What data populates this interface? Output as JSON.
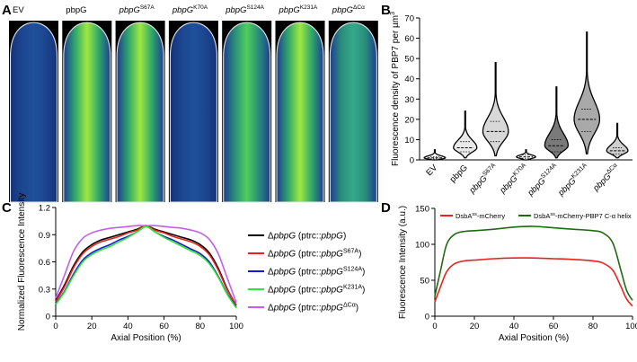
{
  "panel_letters": [
    "A",
    "B",
    "C",
    "D"
  ],
  "panel_a": {
    "strips": [
      {
        "label": "EV",
        "intensity": 0.12
      },
      {
        "label": "pbpG",
        "intensity": 0.9
      },
      {
        "label": "pbpG",
        "sup": "S67A",
        "intensity": 0.8
      },
      {
        "label": "pbpG",
        "sup": "K70A",
        "intensity": 0.18
      },
      {
        "label": "pbpG",
        "sup": "S124A",
        "intensity": 0.6
      },
      {
        "label": "pbpG",
        "sup": "K231A",
        "intensity": 0.95
      },
      {
        "label": "pbpG",
        "sup": "ΔCα",
        "intensity": 0.45
      }
    ]
  },
  "chart_data": [
    {
      "panel": "B",
      "type": "violin",
      "ylabel": "Fluorescence density of PBP7 per µm",
      "ylabel_sup": "3",
      "ylim": [
        0,
        70
      ],
      "yticks": [
        0,
        10,
        20,
        30,
        40,
        50,
        60,
        70
      ],
      "categories": [
        {
          "label": "EV",
          "median": 1,
          "q1": 0.5,
          "q3": 1.5,
          "min": 0,
          "max": 5,
          "max_half_width": 0.5,
          "color": "#ffffff"
        },
        {
          "label": "pbpG",
          "median": 6,
          "q1": 4,
          "q3": 9,
          "min": 1,
          "max": 24,
          "max_half_width": 0.55,
          "color": "#e9e9e9"
        },
        {
          "label": "pbpG",
          "sup": "S67A",
          "median": 14,
          "q1": 9,
          "q3": 19,
          "min": 2,
          "max": 48,
          "max_half_width": 0.6,
          "color": "#d8d8d8"
        },
        {
          "label": "pbpG",
          "sup": "K70A",
          "median": 1.5,
          "q1": 0.8,
          "q3": 2.5,
          "min": 0,
          "max": 5,
          "max_half_width": 0.45,
          "color": "#ffffff"
        },
        {
          "label": "pbpG",
          "sup": "S124A",
          "median": 7,
          "q1": 4,
          "q3": 10,
          "min": 1,
          "max": 36,
          "max_half_width": 0.55,
          "color": "#7a7a7a"
        },
        {
          "label": "pbpG",
          "sup": "K231A",
          "median": 20,
          "q1": 14,
          "q3": 25,
          "min": 3,
          "max": 63,
          "max_half_width": 0.6,
          "color": "#a9a9a9"
        },
        {
          "label": "pbpG",
          "sup": "ΔCα",
          "median": 4.5,
          "q1": 3,
          "q3": 6,
          "min": 1,
          "max": 18,
          "max_half_width": 0.5,
          "color": "#d0d0d0"
        }
      ]
    },
    {
      "panel": "C",
      "type": "line",
      "xlabel": "Axial Position (%)",
      "ylabel": "Normalized Fluorescence Intensity",
      "xlim": [
        0,
        100
      ],
      "ylim": [
        0,
        1.2
      ],
      "xticks": [
        0,
        20,
        40,
        60,
        80,
        100
      ],
      "yticks": [
        0,
        0.3,
        0.6,
        0.9,
        1.2
      ],
      "ytick_labels": [
        "0",
        "0.3",
        "0.6",
        "0.9",
        "1.2"
      ],
      "x": [
        0,
        5,
        10,
        15,
        20,
        25,
        30,
        35,
        40,
        45,
        50,
        55,
        60,
        65,
        70,
        75,
        80,
        85,
        90,
        95,
        100
      ],
      "series": [
        {
          "prefix": "Δ",
          "gene": "pbpG",
          "mid": " (ptrc::",
          "gene2": "pbpG",
          "sup": "",
          "close": ")",
          "color": "#000000",
          "values": [
            0.17,
            0.35,
            0.56,
            0.71,
            0.79,
            0.84,
            0.87,
            0.9,
            0.93,
            0.96,
            1.0,
            0.96,
            0.93,
            0.9,
            0.87,
            0.84,
            0.79,
            0.7,
            0.53,
            0.3,
            0.12
          ]
        },
        {
          "prefix": "Δ",
          "gene": "pbpG",
          "mid": " (ptrc::",
          "gene2": "pbpG",
          "sup": "S67A",
          "close": ")",
          "color": "#e8231f",
          "values": [
            0.16,
            0.33,
            0.54,
            0.69,
            0.77,
            0.82,
            0.85,
            0.88,
            0.92,
            0.95,
            1.0,
            0.95,
            0.92,
            0.88,
            0.85,
            0.82,
            0.77,
            0.68,
            0.51,
            0.29,
            0.12
          ]
        },
        {
          "prefix": "Δ",
          "gene": "pbpG",
          "mid": " (ptrc::",
          "gene2": "pbpG",
          "sup": "S124A",
          "close": ")",
          "color": "#1a1ad6",
          "values": [
            0.14,
            0.28,
            0.47,
            0.62,
            0.7,
            0.75,
            0.79,
            0.84,
            0.88,
            0.93,
            0.99,
            0.93,
            0.88,
            0.84,
            0.79,
            0.74,
            0.69,
            0.6,
            0.44,
            0.25,
            0.1
          ]
        },
        {
          "prefix": "Δ",
          "gene": "pbpG",
          "mid": " (ptrc::",
          "gene2": "pbpG",
          "sup": "K231A",
          "close": ")",
          "color": "#33e633",
          "values": [
            0.13,
            0.27,
            0.45,
            0.6,
            0.68,
            0.73,
            0.77,
            0.82,
            0.87,
            0.93,
            0.99,
            0.93,
            0.87,
            0.82,
            0.77,
            0.72,
            0.67,
            0.58,
            0.43,
            0.24,
            0.09
          ]
        },
        {
          "prefix": "Δ",
          "gene": "pbpG",
          "mid": " (ptrc::",
          "gene2": "pbpG",
          "sup": "ΔCα",
          "close": ")",
          "color": "#c060e8",
          "values": [
            0.2,
            0.46,
            0.72,
            0.86,
            0.92,
            0.95,
            0.97,
            0.98,
            0.99,
            1.0,
            1.0,
            1.0,
            0.99,
            0.98,
            0.97,
            0.95,
            0.92,
            0.85,
            0.69,
            0.42,
            0.15
          ]
        }
      ]
    },
    {
      "panel": "D",
      "type": "line",
      "xlabel": "Axial Position (%)",
      "ylabel": "Fluorescence Intensity (a.u.)",
      "xlim": [
        0,
        100
      ],
      "ylim": [
        0,
        150
      ],
      "xticks": [
        0,
        20,
        40,
        60,
        80,
        100
      ],
      "yticks": [
        0,
        50,
        100,
        150
      ],
      "x": [
        0,
        3,
        6,
        10,
        15,
        20,
        30,
        40,
        50,
        60,
        70,
        80,
        85,
        90,
        94,
        97,
        100
      ],
      "series": [
        {
          "name": "DsbA",
          "sup": "ss",
          "suffix": "-mCherry",
          "color": "#e8231f",
          "values": [
            20,
            42,
            62,
            73,
            77,
            78,
            80,
            81,
            81,
            80,
            79,
            77,
            74,
            64,
            42,
            24,
            14
          ]
        },
        {
          "name": "DsbA",
          "sup": "ss",
          "suffix": "-mCherry-PBP7 C-α helix",
          "color": "#1f6b12",
          "values": [
            28,
            65,
            100,
            114,
            118,
            119,
            121,
            124,
            125,
            123,
            121,
            119,
            116,
            102,
            65,
            36,
            22
          ]
        }
      ]
    }
  ]
}
